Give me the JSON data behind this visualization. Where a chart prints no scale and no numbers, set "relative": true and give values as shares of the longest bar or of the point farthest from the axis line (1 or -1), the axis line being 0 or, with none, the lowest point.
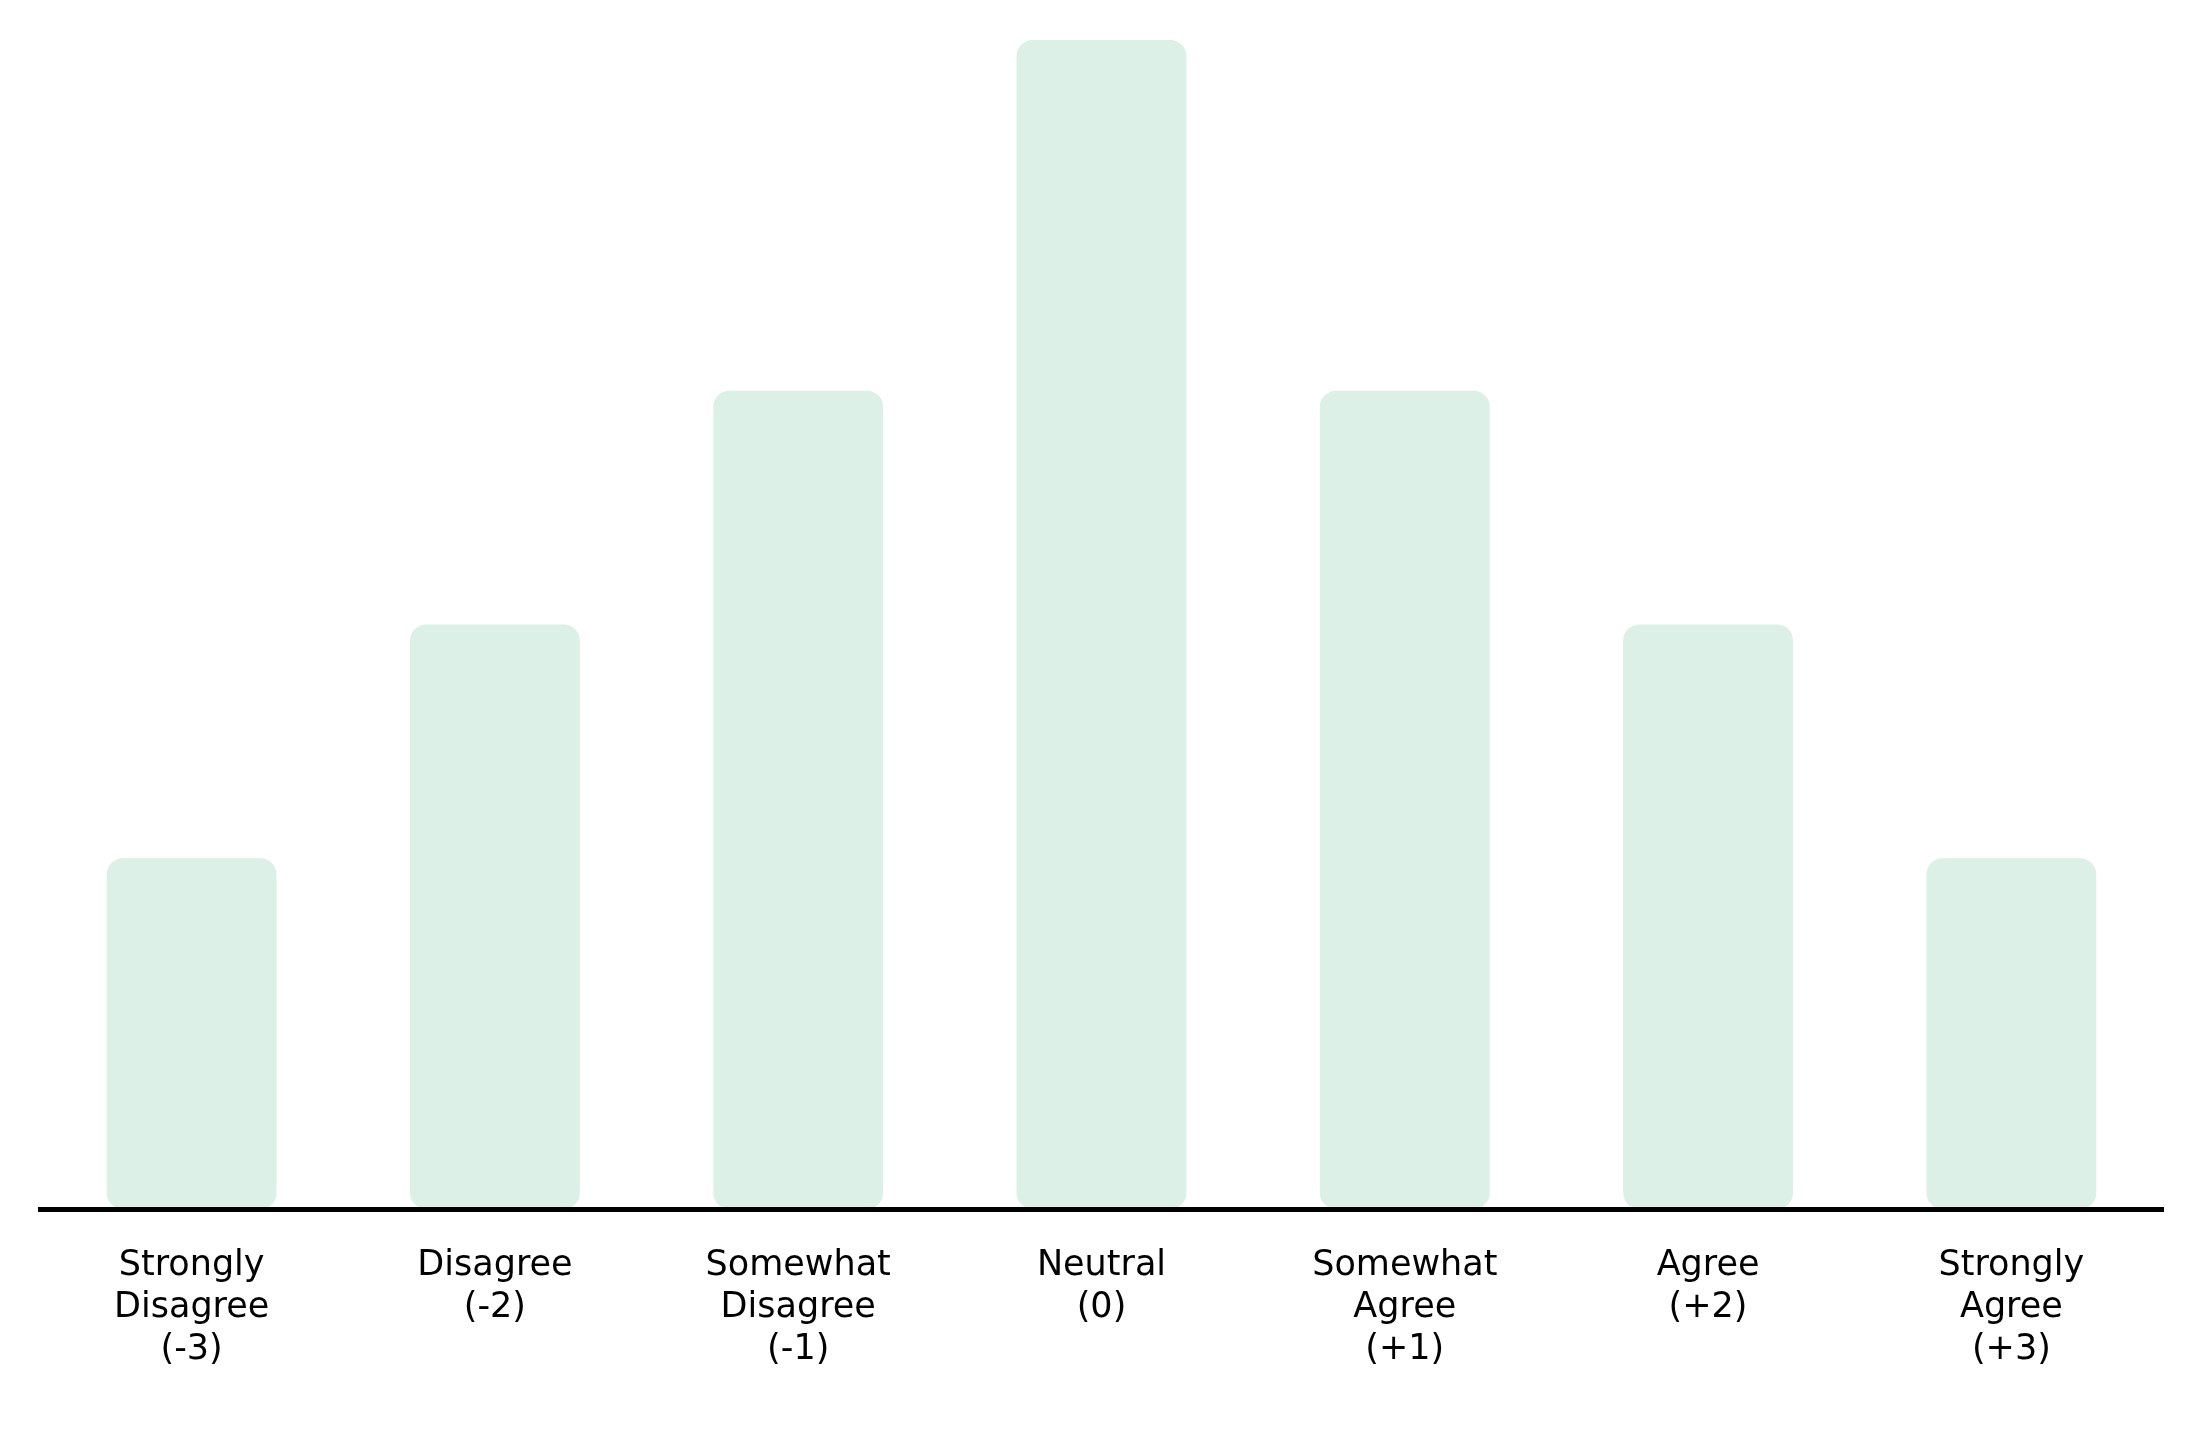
{
  "chart_data": {
    "type": "bar",
    "relative": true,
    "categories": [
      "Strongly Disagree (-3)",
      "Disagree (-2)",
      "Somewhat Disagree (-1)",
      "Neutral (0)",
      "Somewhat Agree (+1)",
      "Agree (+2)",
      "Strongly Agree (+3)"
    ],
    "values": [
      0.3,
      0.5,
      0.7,
      1,
      0.7,
      0.5,
      0.3
    ],
    "color": "#dcf0e8",
    "grid": false,
    "legend": false
  }
}
